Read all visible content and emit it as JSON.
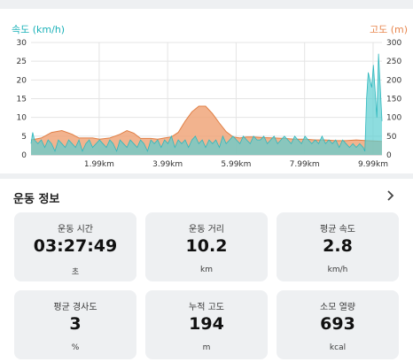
{
  "chart_data": {
    "type": "area",
    "left_axis_label": "속도 (km/h)",
    "right_axis_label": "고도 (m)",
    "left_ylim": [
      0,
      30
    ],
    "right_ylim": [
      0,
      300
    ],
    "left_ticks": [
      "0",
      "5",
      "10",
      "15",
      "20",
      "25",
      "30"
    ],
    "right_ticks": [
      "0",
      "50",
      "100",
      "150",
      "200",
      "250",
      "300"
    ],
    "x_range_km": [
      0,
      10.25
    ],
    "x_ticks": [
      {
        "km": 1.99,
        "label": "1.99km"
      },
      {
        "km": 3.99,
        "label": "3.99km"
      },
      {
        "km": 5.99,
        "label": "5.99km"
      },
      {
        "km": 7.99,
        "label": "7.99km"
      },
      {
        "km": 9.99,
        "label": "9.99km"
      }
    ],
    "grid": true,
    "colors": {
      "speed": "#5ccfd2",
      "speed_line": "#2fb7bd",
      "altitude": "#f0a67a",
      "altitude_line": "#e07f45"
    },
    "series": [
      {
        "axis": "right",
        "x": [
          0,
          0.3,
          0.6,
          0.9,
          1.2,
          1.4,
          1.6,
          1.8,
          2.0,
          2.3,
          2.6,
          2.8,
          3.0,
          3.2,
          3.5,
          3.7,
          3.9,
          4.1,
          4.3,
          4.5,
          4.7,
          4.9,
          5.1,
          5.3,
          5.5,
          5.7,
          5.9,
          6.1,
          6.3,
          6.5,
          6.8,
          7.1,
          7.4,
          7.7,
          8.0,
          8.3,
          8.6,
          8.9,
          9.2,
          9.5,
          9.8,
          10.0,
          10.25
        ],
        "values": [
          40,
          45,
          60,
          65,
          55,
          45,
          45,
          45,
          42,
          45,
          55,
          65,
          58,
          44,
          44,
          42,
          45,
          48,
          60,
          90,
          115,
          130,
          130,
          110,
          85,
          62,
          48,
          45,
          48,
          48,
          46,
          45,
          44,
          42,
          42,
          40,
          40,
          38,
          38,
          40,
          38,
          37,
          36
        ]
      },
      {
        "axis": "left",
        "x": [
          0,
          0.05,
          0.1,
          0.2,
          0.3,
          0.4,
          0.5,
          0.6,
          0.7,
          0.8,
          0.9,
          1.0,
          1.1,
          1.2,
          1.3,
          1.4,
          1.5,
          1.6,
          1.7,
          1.8,
          1.9,
          2.0,
          2.1,
          2.2,
          2.3,
          2.4,
          2.5,
          2.6,
          2.7,
          2.8,
          2.9,
          3.0,
          3.1,
          3.2,
          3.3,
          3.4,
          3.5,
          3.6,
          3.7,
          3.8,
          3.9,
          4.0,
          4.1,
          4.2,
          4.3,
          4.4,
          4.5,
          4.6,
          4.7,
          4.8,
          4.9,
          5.0,
          5.1,
          5.2,
          5.3,
          5.4,
          5.5,
          5.6,
          5.7,
          5.8,
          5.9,
          6.0,
          6.1,
          6.2,
          6.3,
          6.4,
          6.5,
          6.6,
          6.7,
          6.8,
          6.9,
          7.0,
          7.1,
          7.2,
          7.3,
          7.4,
          7.5,
          7.6,
          7.7,
          7.8,
          7.9,
          8.0,
          8.1,
          8.2,
          8.3,
          8.4,
          8.5,
          8.6,
          8.7,
          8.8,
          8.9,
          9.0,
          9.1,
          9.2,
          9.3,
          9.4,
          9.5,
          9.6,
          9.7,
          9.75,
          9.8,
          9.85,
          9.9,
          9.95,
          10.0,
          10.05,
          10.1,
          10.15,
          10.2,
          10.25
        ],
        "values": [
          3,
          6,
          4,
          3,
          4,
          2,
          4,
          3,
          1,
          4,
          3,
          2,
          4,
          3,
          2,
          4,
          1,
          3,
          4,
          2,
          3,
          4,
          3,
          2,
          4,
          3,
          1,
          4,
          3,
          2,
          4,
          3,
          2,
          4,
          3,
          1,
          4,
          3,
          4,
          2,
          4,
          3,
          5,
          2,
          4,
          3,
          4,
          2,
          4,
          5,
          3,
          4,
          2,
          4,
          3,
          4,
          2,
          5,
          3,
          4,
          5,
          4,
          3,
          5,
          4,
          3,
          5,
          4,
          4,
          5,
          3,
          4,
          5,
          3,
          4,
          5,
          4,
          3,
          5,
          4,
          3,
          5,
          4,
          3,
          4,
          3,
          5,
          3,
          4,
          3,
          4,
          2,
          4,
          3,
          2,
          3,
          2,
          3,
          2,
          1,
          15,
          22,
          20,
          18,
          24,
          17,
          10,
          27,
          18,
          9
        ]
      }
    ]
  },
  "section": {
    "title": "운동 정보"
  },
  "stats": [
    {
      "label": "운동 시간",
      "value": "03:27:49",
      "unit": "초"
    },
    {
      "label": "운동 거리",
      "value": "10.2",
      "unit": "km"
    },
    {
      "label": "평균 속도",
      "value": "2.8",
      "unit": "km/h"
    },
    {
      "label": "평균 경사도",
      "value": "3",
      "unit": "%"
    },
    {
      "label": "누적 고도",
      "value": "194",
      "unit": "m"
    },
    {
      "label": "소모 열량",
      "value": "693",
      "unit": "kcal"
    }
  ]
}
